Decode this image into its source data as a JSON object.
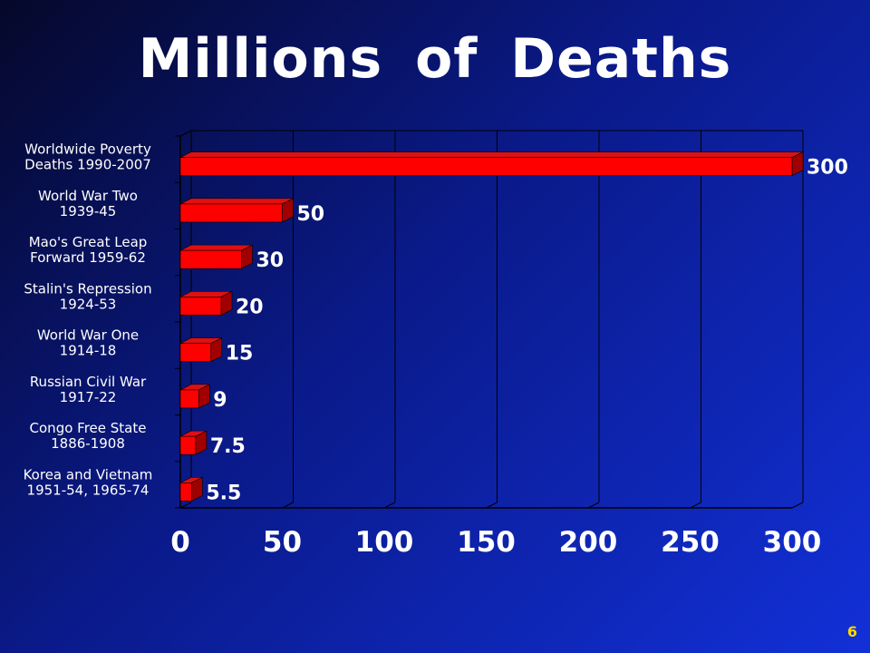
{
  "slide": {
    "title": "Millions  of  Deaths",
    "page_number": "6"
  },
  "colors": {
    "bar_front": "#ff0000",
    "bar_top": "#e01010",
    "bar_side": "#a00000",
    "grid": "#000000",
    "text": "#ffffff",
    "page_number": "#ffd700"
  },
  "chart_data": {
    "type": "bar",
    "orientation": "horizontal",
    "title": "Millions  of  Deaths",
    "categories": [
      [
        "Worldwide Poverty",
        "Deaths 1990-2007"
      ],
      [
        "World War Two",
        "1939-45"
      ],
      [
        "Mao's Great Leap",
        "Forward 1959-62"
      ],
      [
        "Stalin's Repression",
        "1924-53"
      ],
      [
        "World War One",
        "1914-18"
      ],
      [
        "Russian Civil War",
        "1917-22"
      ],
      [
        "Congo Free State",
        "1886-1908"
      ],
      [
        "Korea and Vietnam",
        "1951-54, 1965-74"
      ]
    ],
    "values": [
      300,
      50,
      30,
      20,
      15,
      9,
      7.5,
      5.5
    ],
    "value_labels": [
      "300",
      "50",
      "30",
      "20",
      "15",
      "9",
      "7.5",
      "5.5"
    ],
    "xlim": [
      0,
      300
    ],
    "xticks": [
      0,
      50,
      100,
      150,
      200,
      250,
      300
    ],
    "grid": true,
    "legend": "none"
  }
}
